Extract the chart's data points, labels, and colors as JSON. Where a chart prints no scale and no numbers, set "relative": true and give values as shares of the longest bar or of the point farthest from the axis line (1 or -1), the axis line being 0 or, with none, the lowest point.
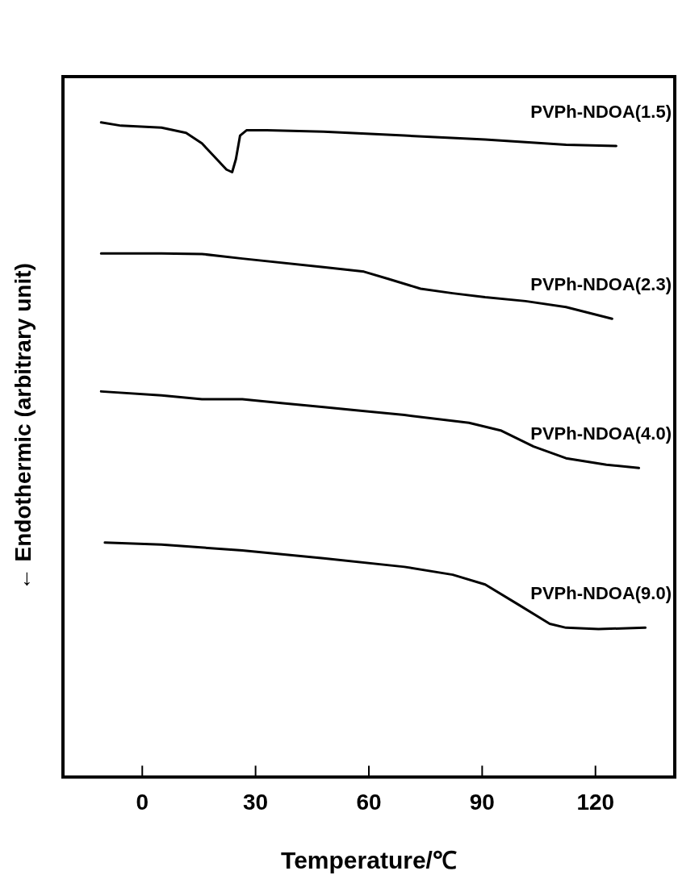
{
  "chart_data": {
    "type": "line",
    "relative": true,
    "xlabel": "Temperature/℃",
    "ylabel": "← Endothermic (arbitrary unit)",
    "xlim": [
      -21,
      141
    ],
    "xticks": [
      0,
      30,
      60,
      90,
      120
    ],
    "marker": "none",
    "line_style": "solid",
    "legend": false,
    "series": [
      {
        "name": "PVPh-NDOA(1.5)",
        "color": "#000000",
        "x": [
          -10.9,
          -5.6,
          5.1,
          11.6,
          15.8,
          19.7,
          22.3,
          23.8,
          24.8,
          25.9,
          27.6,
          33,
          48,
          69.4,
          90.8,
          112.2,
          125.5
        ],
        "values": [
          1.0,
          0.995,
          0.992,
          0.984,
          0.968,
          0.944,
          0.928,
          0.924,
          0.944,
          0.98,
          0.988,
          0.988,
          0.986,
          0.98,
          0.974,
          0.966,
          0.964
        ]
      },
      {
        "name": "PVPh-NDOA(2.3)",
        "color": "#000000",
        "x": [
          -10.9,
          5.1,
          15.8,
          26.5,
          48,
          58.7,
          65.1,
          73.7,
          82.2,
          90.8,
          101.5,
          112.2,
          124.4
        ],
        "values": [
          0.8,
          0.8,
          0.799,
          0.792,
          0.779,
          0.772,
          0.761,
          0.746,
          0.739,
          0.733,
          0.727,
          0.718,
          0.7
        ]
      },
      {
        "name": "PVPh-NDOA(4.0)",
        "color": "#000000",
        "x": [
          -10.9,
          5.1,
          15.8,
          26.5,
          37.3,
          48,
          69.4,
          86.5,
          95.1,
          103.6,
          112.2,
          122.9,
          131.5
        ],
        "values": [
          0.589,
          0.583,
          0.577,
          0.577,
          0.571,
          0.565,
          0.553,
          0.541,
          0.529,
          0.505,
          0.487,
          0.477,
          0.472
        ]
      },
      {
        "name": "PVPh-NDOA(9.0)",
        "color": "#000000",
        "x": [
          -9.9,
          5.1,
          26.5,
          48,
          69.4,
          82.2,
          90.8,
          99.4,
          107.9,
          112.2,
          120.8,
          133.2
        ],
        "values": [
          0.358,
          0.355,
          0.346,
          0.334,
          0.321,
          0.309,
          0.294,
          0.264,
          0.234,
          0.228,
          0.226,
          0.228
        ]
      }
    ]
  }
}
